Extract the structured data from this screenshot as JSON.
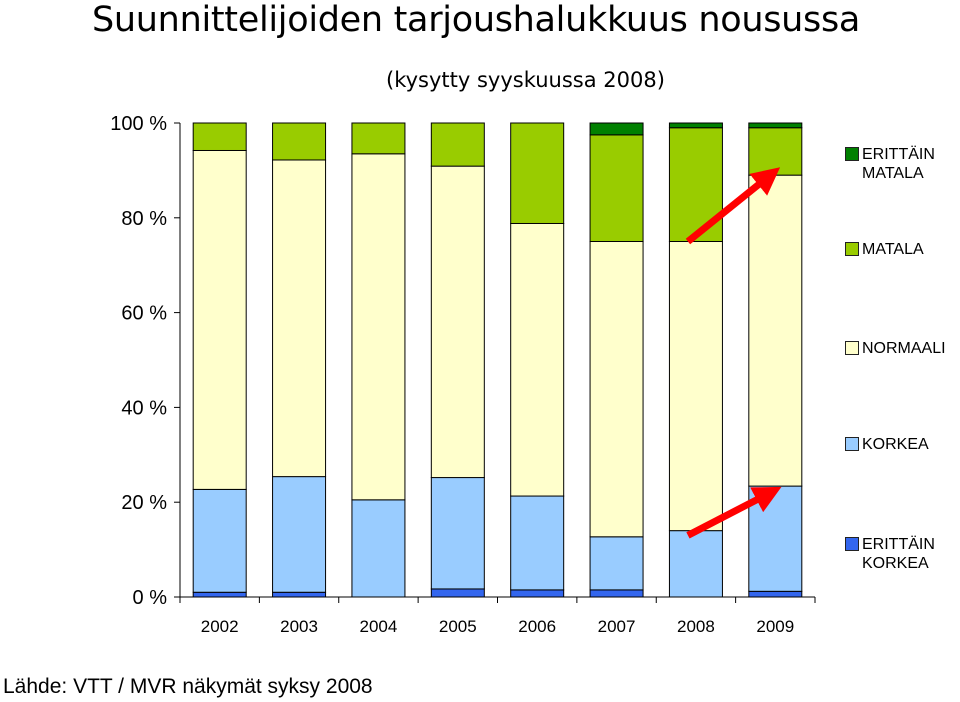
{
  "title": "Suunnittelijoiden tarjoushalukkuus nousussa",
  "subtitle": "(kysytty syyskuussa 2008)",
  "source": "Lähde: VTT / MVR näkymät syksy 2008",
  "chart_data": {
    "type": "bar",
    "stacked": true,
    "normalized_percent": true,
    "categories": [
      "2002",
      "2003",
      "2004",
      "2005",
      "2006",
      "2007",
      "2008",
      "2009"
    ],
    "y_ticks": [
      "0 %",
      "20 %",
      "40 %",
      "60 %",
      "80 %",
      "100 %"
    ],
    "ylim": [
      0,
      100
    ],
    "grid": false,
    "legend_position": "right",
    "series": [
      {
        "name": "ERITTÄIN KORKEA",
        "color": "#3366ee",
        "values": [
          1.0,
          1.0,
          0.0,
          1.7,
          1.5,
          1.5,
          0.0,
          1.2
        ]
      },
      {
        "name": "KORKEA",
        "color": "#99ccff",
        "values": [
          21.7,
          24.4,
          20.5,
          23.5,
          19.8,
          11.2,
          14.0,
          22.2
        ]
      },
      {
        "name": "NORMAALI",
        "color": "#ffffcc",
        "values": [
          71.5,
          66.8,
          73.0,
          65.7,
          57.5,
          62.3,
          61.0,
          65.6
        ]
      },
      {
        "name": "MATALA",
        "color": "#99cc00",
        "values": [
          5.8,
          7.8,
          6.5,
          9.1,
          21.2,
          22.5,
          24.0,
          10.0
        ]
      },
      {
        "name": "ERITTÄIN MATALA",
        "color": "#008000",
        "values": [
          0.0,
          0.0,
          0.0,
          0.0,
          0.0,
          2.5,
          1.0,
          1.0
        ]
      }
    ],
    "annotations": [
      {
        "type": "arrow",
        "color": "#ff0000",
        "from_category": "2008",
        "from_value": 75,
        "to_category": "2009",
        "to_value": 89
      },
      {
        "type": "arrow",
        "color": "#ff0000",
        "from_category": "2008",
        "from_value": 13,
        "to_category": "2009",
        "to_value": 22
      }
    ]
  }
}
